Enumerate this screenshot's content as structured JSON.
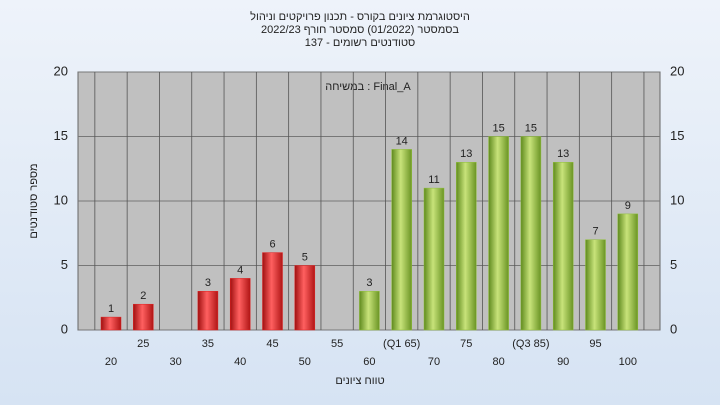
{
  "chart_data": {
    "type": "bar",
    "title": [
      "היסטוגרמת ציונים בקורס - תכנון פרויקטים וניהול",
      "בסמסטר  (01/2022)  סמסטר חורף  2022/23",
      "137 - סטודנטים רשומים"
    ],
    "annotation": "במשיחה : Final_A",
    "x_label": "טווח ציונים",
    "y_label": "מספר סטודנטים",
    "categories": [
      "20",
      "25",
      "30",
      "35",
      "40",
      "45",
      "50",
      "55",
      "60",
      "(Q1 65)",
      "70",
      "75",
      "80",
      "(Q3 85)",
      "90",
      "95",
      "100"
    ],
    "values": [
      1,
      2,
      0,
      3,
      4,
      6,
      5,
      0,
      3,
      14,
      11,
      13,
      15,
      15,
      13,
      7,
      9
    ],
    "colors": [
      "#e02020",
      "#e02020",
      "#e02020",
      "#e02020",
      "#e02020",
      "#e02020",
      "#e02020",
      "#e02020",
      "#8fbf3a",
      "#8fbf3a",
      "#8fbf3a",
      "#8fbf3a",
      "#8fbf3a",
      "#8fbf3a",
      "#8fbf3a",
      "#8fbf3a",
      "#8fbf3a"
    ],
    "ylim": [
      0,
      20
    ],
    "yticks": [
      0,
      5,
      10,
      15,
      20
    ],
    "grid": true
  }
}
